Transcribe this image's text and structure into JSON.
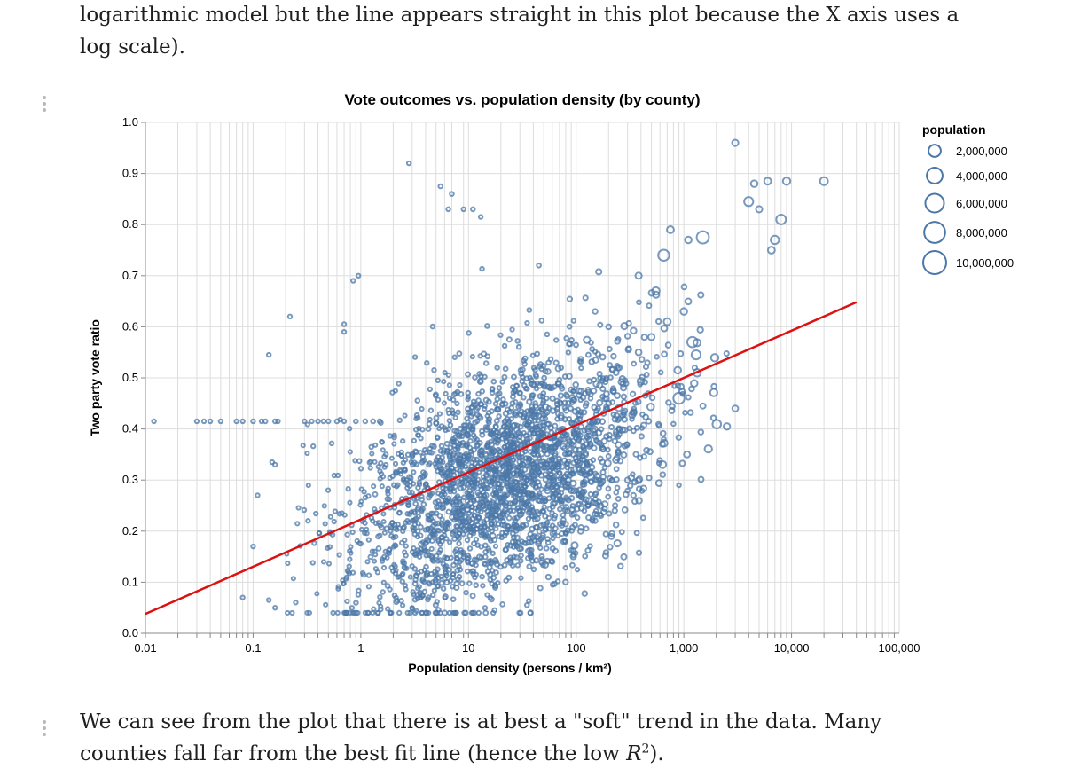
{
  "text": {
    "top_paragraph": "logarithmic model but the line appears straight in this plot because the X axis uses a log scale).",
    "bottom_paragraph_before": "We can see from the plot that there is at best a \"soft\" trend in the data. Many counties fall far from the best fit line (hence the low ",
    "bottom_paragraph_math": "R",
    "bottom_paragraph_sup": "2",
    "bottom_paragraph_after": ")."
  },
  "chart_data": {
    "type": "scatter",
    "title": "Vote outcomes vs. population density (by county)",
    "xlabel": "Population density (persons / km²)",
    "ylabel": "Two party vote ratio",
    "x_scale": "log",
    "xlim": [
      0.01,
      100000
    ],
    "ylim": [
      0.0,
      1.0
    ],
    "x_ticks": [
      0.01,
      0.1,
      1,
      10,
      100,
      1000,
      10000,
      100000
    ],
    "x_tick_labels": [
      "0.01",
      "0.1",
      "1",
      "10",
      "100",
      "1,000",
      "10,000",
      "100,000"
    ],
    "y_ticks": [
      0.0,
      0.1,
      0.2,
      0.3,
      0.4,
      0.5,
      0.6,
      0.7,
      0.8,
      0.9,
      1.0
    ],
    "y_tick_labels": [
      "0.0",
      "0.1",
      "0.2",
      "0.3",
      "0.4",
      "0.5",
      "0.6",
      "0.7",
      "0.8",
      "0.9",
      "1.0"
    ],
    "grid": true,
    "point_color": "#4c78a8",
    "fit_line_color": "#dd1111",
    "fit_line": {
      "x": [
        0.01,
        40000
      ],
      "y": [
        0.038,
        0.648
      ]
    },
    "legend": {
      "title": "population",
      "placement": "right",
      "entries": [
        {
          "label": "2,000,000",
          "value": 2000000
        },
        {
          "label": "4,000,000",
          "value": 4000000
        },
        {
          "label": "6,000,000",
          "value": 6000000
        },
        {
          "label": "8,000,000",
          "value": 8000000
        },
        {
          "label": "10,000,000",
          "value": 10000000
        }
      ]
    },
    "points": [
      [
        0.012,
        0.415,
        3000
      ],
      [
        0.03,
        0.415,
        3000
      ],
      [
        0.035,
        0.415,
        3000
      ],
      [
        0.04,
        0.415,
        3000
      ],
      [
        0.05,
        0.415,
        3500
      ],
      [
        0.07,
        0.415,
        3000
      ],
      [
        0.08,
        0.415,
        3000
      ],
      [
        0.1,
        0.415,
        4000
      ],
      [
        0.12,
        0.415,
        5000
      ],
      [
        0.13,
        0.415,
        4500
      ],
      [
        0.16,
        0.415,
        5000
      ],
      [
        0.17,
        0.415,
        4000
      ],
      [
        0.3,
        0.415,
        3000
      ],
      [
        0.35,
        0.415,
        3500
      ],
      [
        0.4,
        0.415,
        4000
      ],
      [
        0.45,
        0.415,
        4500
      ],
      [
        0.5,
        0.415,
        5000
      ],
      [
        0.6,
        0.415,
        6000
      ],
      [
        0.7,
        0.415,
        4000
      ],
      [
        0.9,
        0.415,
        6000
      ],
      [
        1.1,
        0.415,
        8000
      ],
      [
        1.3,
        0.415,
        10000
      ],
      [
        1.5,
        0.415,
        12000
      ],
      [
        0.14,
        0.545,
        4000
      ],
      [
        0.22,
        0.62,
        4500
      ],
      [
        0.7,
        0.605,
        5000
      ],
      [
        0.7,
        0.59,
        4000
      ],
      [
        0.85,
        0.69,
        5000
      ],
      [
        0.95,
        0.7,
        4000
      ],
      [
        2.8,
        0.92,
        4000
      ],
      [
        0.15,
        0.335,
        4000
      ],
      [
        0.16,
        0.33,
        3000
      ],
      [
        0.11,
        0.27,
        2500
      ],
      [
        0.1,
        0.17,
        2500
      ],
      [
        0.14,
        0.065,
        3000
      ],
      [
        0.16,
        0.05,
        3000
      ],
      [
        0.08,
        0.07,
        2500
      ],
      [
        5.5,
        0.875,
        8000
      ],
      [
        7,
        0.86,
        6000
      ],
      [
        6.5,
        0.83,
        5000
      ],
      [
        9,
        0.83,
        5000
      ],
      [
        11,
        0.83,
        6000
      ],
      [
        13,
        0.815,
        5000
      ],
      [
        45,
        0.72,
        9000
      ],
      [
        3000,
        0.96,
        200000
      ],
      [
        4500,
        0.88,
        250000
      ],
      [
        6000,
        0.885,
        300000
      ],
      [
        9000,
        0.885,
        400000
      ],
      [
        20000,
        0.885,
        500000
      ],
      [
        8000,
        0.81,
        1000000
      ],
      [
        6500,
        0.75,
        300000
      ],
      [
        4000,
        0.845,
        800000
      ],
      [
        5000,
        0.83,
        200000
      ],
      [
        7000,
        0.77,
        600000
      ],
      [
        1500,
        0.775,
        2000000
      ],
      [
        650,
        0.74,
        1500000
      ],
      [
        3000,
        0.44,
        150000
      ],
      [
        900,
        0.46,
        1500000
      ],
      [
        1300,
        0.545,
        800000
      ],
      [
        1200,
        0.57,
        1200000
      ],
      [
        900,
        0.29,
        5000
      ],
      [
        800,
        0.41,
        6000
      ],
      [
        650,
        0.38,
        8000
      ],
      [
        340,
        0.27,
        40000
      ],
      [
        230,
        0.25,
        30000
      ],
      [
        300,
        0.3,
        50000
      ],
      [
        170,
        0.23,
        20000
      ],
      [
        130,
        0.25,
        10000
      ],
      [
        60,
        0.14,
        20000
      ],
      [
        45,
        0.18,
        40000
      ],
      [
        30,
        0.24,
        30000
      ],
      [
        40,
        0.33,
        35000
      ],
      [
        25,
        0.28,
        20000
      ],
      [
        50,
        0.4,
        15000
      ],
      [
        200,
        0.45,
        60000
      ],
      [
        250,
        0.52,
        100000
      ],
      [
        380,
        0.55,
        150000
      ],
      [
        500,
        0.58,
        200000
      ],
      [
        700,
        0.61,
        300000
      ],
      [
        1000,
        0.63,
        250000
      ],
      [
        550,
        0.67,
        400000
      ],
      [
        380,
        0.7,
        200000
      ],
      [
        750,
        0.79,
        300000
      ],
      [
        1100,
        0.77,
        250000
      ],
      [
        200,
        0.6,
        50000
      ],
      [
        150,
        0.63,
        40000
      ]
    ]
  }
}
